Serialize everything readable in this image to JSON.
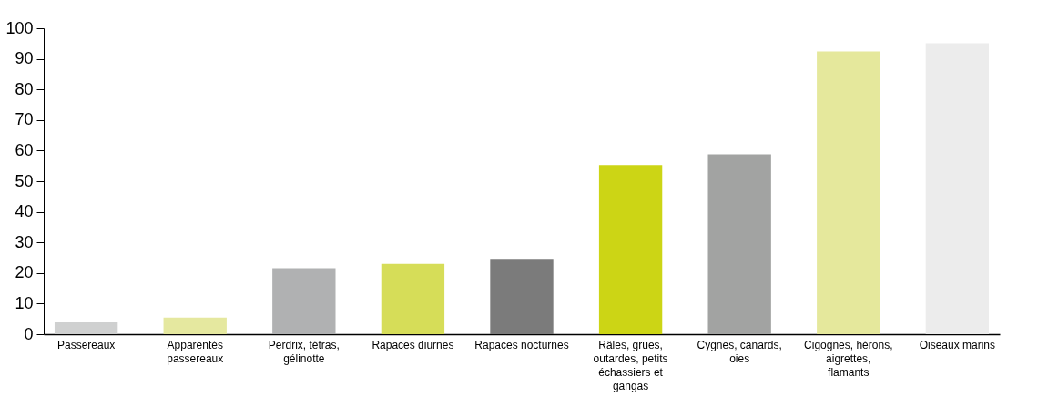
{
  "chart_data": {
    "type": "bar",
    "categories": [
      "Passereaux",
      "Apparentés passereaux",
      "Perdrix, tétras, gélinotte",
      "Rapaces diurnes",
      "Rapaces nocturnes",
      "Râles, grues, outardes, petits échassiers et gangas",
      "Cygnes, canards, oies",
      "Cigognes, hérons, aigrettes, flamants",
      "Oiseaux marins"
    ],
    "values": [
      3.9,
      5.4,
      21.6,
      23.0,
      24.6,
      55.3,
      58.8,
      92.4,
      95.1
    ],
    "colors": [
      "#cfd0d0",
      "#e5e89f",
      "#b0b1b2",
      "#d6dd58",
      "#7b7b7b",
      "#ccd515",
      "#a2a3a2",
      "#e5e89c",
      "#ececec"
    ],
    "ylim": [
      0,
      100
    ],
    "yticks": [
      0,
      10,
      20,
      30,
      40,
      50,
      60,
      70,
      80,
      90,
      100
    ],
    "grid": false
  }
}
